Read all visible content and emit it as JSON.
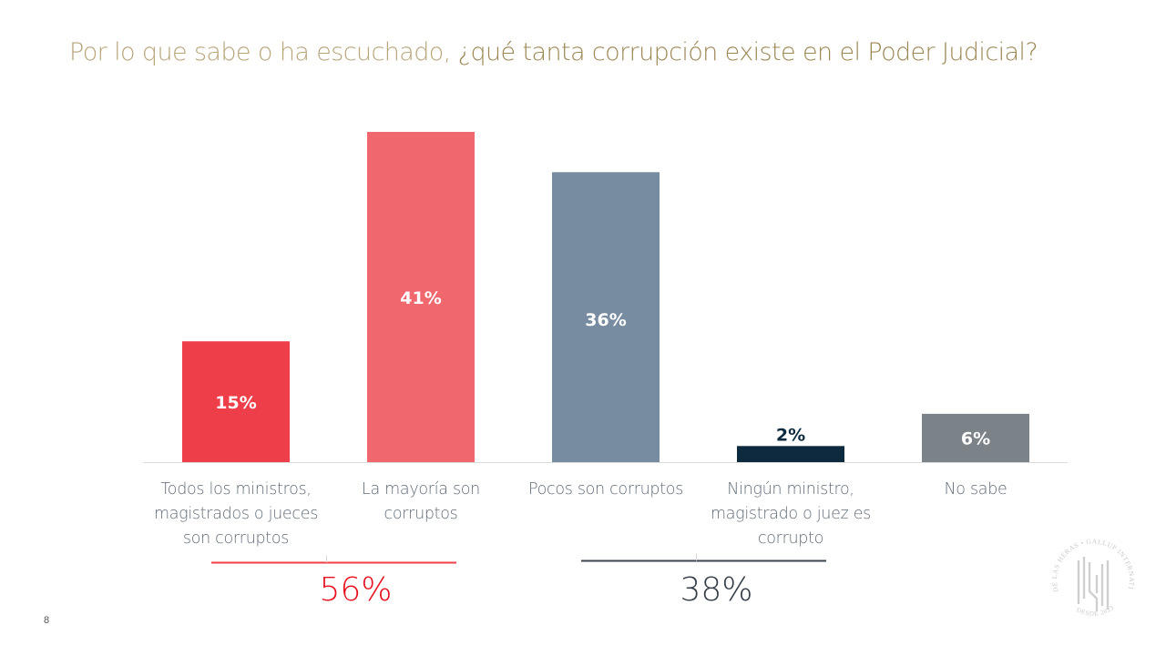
{
  "page": {
    "number": "8"
  },
  "title": {
    "prefix": "Por lo que sabe o ha escuchado, ",
    "highlight": "¿qué tanta corrupción existe en el Poder Judicial?"
  },
  "chart_data": {
    "type": "bar",
    "title": "Por lo que sabe o ha escuchado, ¿qué tanta corrupción existe en el Poder Judicial?",
    "xlabel": "",
    "ylabel": "",
    "ylim": [
      0,
      41
    ],
    "grid": false,
    "legend": "none",
    "categories": [
      "Todos los ministros, magistrados o jueces son corruptos",
      "La mayoría son corruptos",
      "Pocos son corruptos",
      "Ningún ministro, magistrado o juez es corrupto",
      "No sabe"
    ],
    "category_lines": [
      [
        "Todos los ministros,",
        "magistrados o jueces",
        "son corruptos"
      ],
      [
        "La mayoría son",
        "corruptos"
      ],
      [
        "Pocos son corruptos"
      ],
      [
        "Ningún ministro,",
        "magistrado o juez es",
        "corrupto"
      ],
      [
        "No sabe"
      ]
    ],
    "values": [
      15,
      41,
      36,
      2,
      6
    ],
    "data_labels": [
      "15%",
      "41%",
      "36%",
      "2%",
      "6%"
    ],
    "bar_colors": [
      "#ee3e4a",
      "#f0676e",
      "#778ca0",
      "#0d2a3e",
      "#7b8288"
    ],
    "label_colors": [
      "#ffffff",
      "#ffffff",
      "#ffffff",
      "#0d2a3e",
      "#ffffff"
    ],
    "groups": [
      {
        "label": "56%",
        "value": 56,
        "members": [
          0,
          1
        ],
        "color": "#e8101e",
        "line_color": "#ee3e4a"
      },
      {
        "label": "38%",
        "value": 38,
        "members": [
          2,
          3
        ],
        "color": "#333d47",
        "line_color": "#3a4550"
      }
    ]
  },
  "logo": {
    "outer_text": "DE LAS HERAS • GALLUP INTERNATIONAL MEMBER",
    "bottom_text": "DESDE 2023"
  }
}
